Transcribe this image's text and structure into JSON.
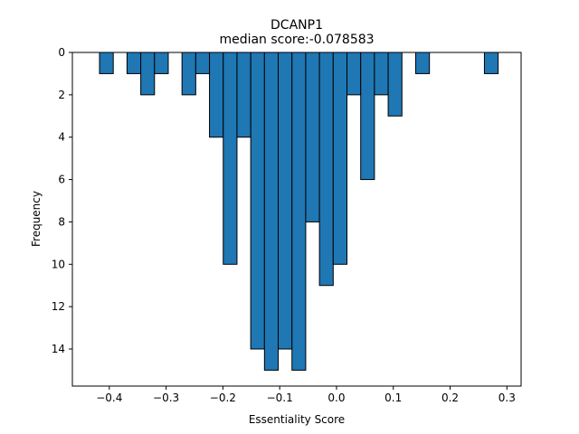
{
  "chart_data": {
    "type": "bar",
    "title": "DCANP1",
    "subtitle": "median score:-0.078583",
    "xlabel": "Essentiality Score",
    "ylabel": "Frequency",
    "xlim": [
      -0.465,
      0.325
    ],
    "ylim": [
      15.75,
      0
    ],
    "y_inverted": true,
    "x_ticks": [
      -0.4,
      -0.3,
      -0.2,
      -0.1,
      0.0,
      0.1,
      0.2,
      0.3
    ],
    "x_tick_labels": [
      "−0.4",
      "−0.3",
      "−0.2",
      "−0.1",
      "0.0",
      "0.1",
      "0.2",
      "0.3"
    ],
    "y_ticks": [
      0,
      2,
      4,
      6,
      8,
      10,
      12,
      14
    ],
    "y_tick_labels": [
      "0",
      "2",
      "4",
      "6",
      "8",
      "10",
      "12",
      "14"
    ],
    "bin_width": 0.0242,
    "bins": [
      {
        "x": -0.4172,
        "count": 1
      },
      {
        "x": -0.3688,
        "count": 1
      },
      {
        "x": -0.3446,
        "count": 2
      },
      {
        "x": -0.3204,
        "count": 1
      },
      {
        "x": -0.272,
        "count": 2
      },
      {
        "x": -0.2478,
        "count": 1
      },
      {
        "x": -0.2236,
        "count": 4
      },
      {
        "x": -0.1994,
        "count": 10
      },
      {
        "x": -0.1752,
        "count": 4
      },
      {
        "x": -0.151,
        "count": 14
      },
      {
        "x": -0.1268,
        "count": 15
      },
      {
        "x": -0.1026,
        "count": 14
      },
      {
        "x": -0.0784,
        "count": 15
      },
      {
        "x": -0.0542,
        "count": 8
      },
      {
        "x": -0.03,
        "count": 11
      },
      {
        "x": -0.0058,
        "count": 10
      },
      {
        "x": 0.0184,
        "count": 2
      },
      {
        "x": 0.0426,
        "count": 6
      },
      {
        "x": 0.0668,
        "count": 2
      },
      {
        "x": 0.091,
        "count": 3
      },
      {
        "x": 0.1394,
        "count": 1
      },
      {
        "x": 0.2604,
        "count": 1
      }
    ],
    "grid": false,
    "colors": {
      "bar_fill": "#1f77b4",
      "bar_edge": "#000000"
    }
  }
}
